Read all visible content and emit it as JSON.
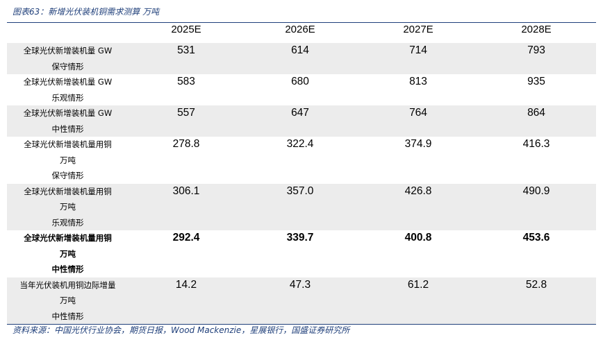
{
  "title": "图表63：新增光伏装机铜需求测算 万吨",
  "table": {
    "header": [
      "2025E",
      "2026E",
      "2027E",
      "2028E"
    ],
    "rows": [
      {
        "label": [
          "全球光伏新增装机量 GW",
          "保守情形"
        ],
        "cells": [
          "531",
          "614",
          "714",
          "793"
        ]
      },
      {
        "label": [
          "全球光伏新增装机量 GW",
          "乐观情形"
        ],
        "cells": [
          "583",
          "680",
          "813",
          "935"
        ]
      },
      {
        "label": [
          "全球光伏新增装机量 GW",
          "中性情形"
        ],
        "cells": [
          "557",
          "647",
          "764",
          "864"
        ]
      },
      {
        "label": [
          "全球光伏新增装机量用铜",
          "万吨",
          "保守情形"
        ],
        "cells": [
          "278.8",
          "322.4",
          "374.9",
          "416.3"
        ]
      },
      {
        "label": [
          "全球光伏新增装机量用铜",
          "万吨",
          "乐观情形"
        ],
        "cells": [
          "306.1",
          "357.0",
          "426.8",
          "490.9"
        ]
      },
      {
        "label": [
          "全球光伏新增装机量用铜",
          "万吨",
          "中性情形"
        ],
        "cells": [
          "292.4",
          "339.7",
          "400.8",
          "453.6"
        ],
        "bold": true
      },
      {
        "label": [
          "当年光伏装机用铜边际增量",
          "万吨",
          "中性情形"
        ],
        "cells": [
          "14.2",
          "47.3",
          "61.2",
          "52.8"
        ]
      }
    ]
  },
  "source": "资料来源：中国光伏行业协会，期货日报，Wood Mackenzie，星展银行，国盛证券研究所"
}
